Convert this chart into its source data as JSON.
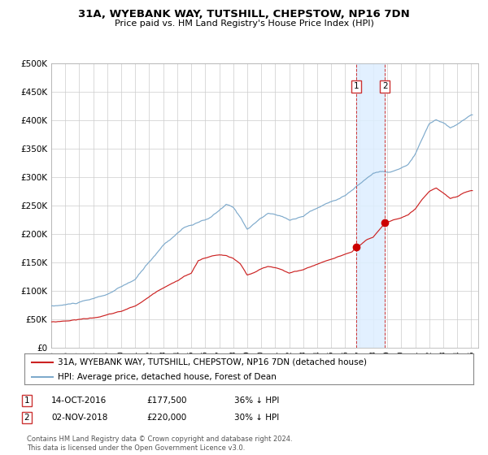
{
  "title": "31A, WYEBANK WAY, TUTSHILL, CHEPSTOW, NP16 7DN",
  "subtitle": "Price paid vs. HM Land Registry's House Price Index (HPI)",
  "hpi_color": "#7eaacc",
  "price_color": "#cc2222",
  "point_color": "#cc0000",
  "background_color": "#ffffff",
  "grid_color": "#cccccc",
  "highlight_color": "#ddeeff",
  "dashed_line_color": "#cc3333",
  "ylim": [
    0,
    500000
  ],
  "yticks": [
    0,
    50000,
    100000,
    150000,
    200000,
    250000,
    300000,
    350000,
    400000,
    450000,
    500000
  ],
  "ytick_labels": [
    "£0",
    "£50K",
    "£100K",
    "£150K",
    "£200K",
    "£250K",
    "£300K",
    "£350K",
    "£400K",
    "£450K",
    "£500K"
  ],
  "xstart_year": 1995,
  "xend_year": 2025,
  "p1_year": 2016.789,
  "p1_price": 177500,
  "p2_year": 2018.84,
  "p2_price": 220000,
  "legend1": "31A, WYEBANK WAY, TUTSHILL, CHEPSTOW, NP16 7DN (detached house)",
  "legend2": "HPI: Average price, detached house, Forest of Dean",
  "ann1_date": "14-OCT-2016",
  "ann1_price": "£177,500",
  "ann1_hpi": "36% ↓ HPI",
  "ann2_date": "02-NOV-2018",
  "ann2_price": "£220,000",
  "ann2_hpi": "30% ↓ HPI",
  "footer": "Contains HM Land Registry data © Crown copyright and database right 2024.\nThis data is licensed under the Open Government Licence v3.0."
}
